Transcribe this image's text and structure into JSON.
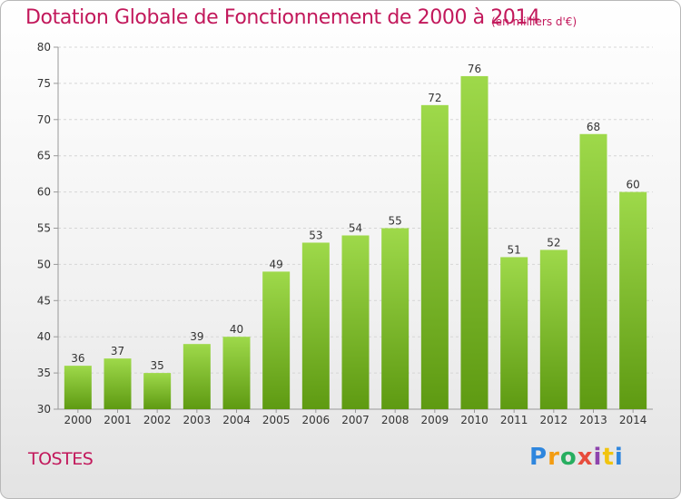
{
  "header": {
    "title": "Dotation Globale de Fonctionnement de 2000 à 2014",
    "unit": "(en milliers d'€)"
  },
  "footer": {
    "commune": "TOSTES",
    "logo": "Proxiti",
    "logo_colors": [
      "#2e86de",
      "#f39c12",
      "#27ae60",
      "#e74c3c",
      "#8e44ad",
      "#f1c40f",
      "#2e86de"
    ]
  },
  "colors": {
    "title": "#c2185b",
    "bar_top": "#9ed94a",
    "bar_bottom": "#5e9a12",
    "axis": "#999999",
    "grid": "#d6d6d6"
  },
  "chart_data": {
    "type": "bar",
    "title": "Dotation Globale de Fonctionnement de 2000 à 2014",
    "subtitle": "(en milliers d'€)",
    "xlabel": "",
    "ylabel": "",
    "categories": [
      "2000",
      "2001",
      "2002",
      "2003",
      "2004",
      "2005",
      "2006",
      "2007",
      "2008",
      "2009",
      "2010",
      "2011",
      "2012",
      "2013",
      "2014"
    ],
    "values": [
      36,
      37,
      35,
      39,
      40,
      49,
      53,
      54,
      55,
      72,
      76,
      51,
      52,
      68,
      60
    ],
    "ylim": [
      30,
      80
    ],
    "yticks": [
      30,
      35,
      40,
      45,
      50,
      55,
      60,
      65,
      70,
      75,
      80
    ],
    "grid": true,
    "legend": "none"
  }
}
